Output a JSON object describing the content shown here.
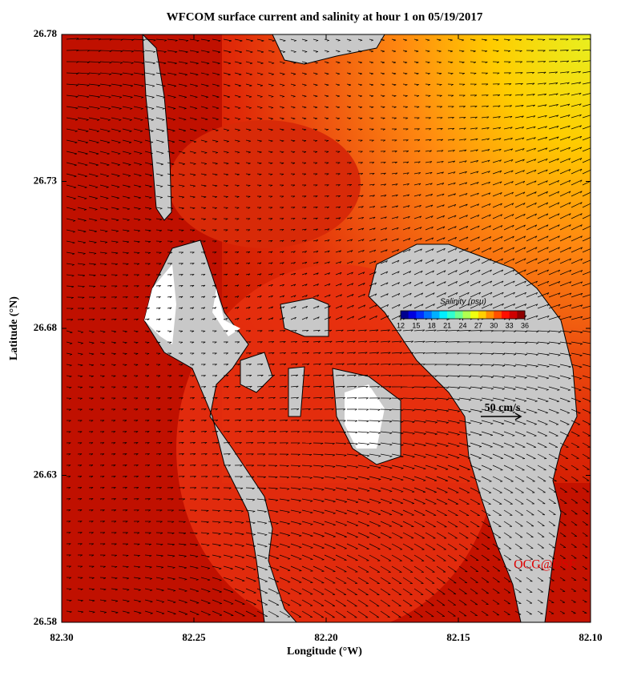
{
  "title": "WFCOM surface current and salinity at hour 1 on 05/19/2017",
  "x_axis": {
    "label": "Longitude (°W)",
    "lim": [
      82.3,
      82.1
    ],
    "ticks": [
      {
        "value": 82.3,
        "label": "82.30"
      },
      82.25,
      {
        "value": 82.2,
        "label": "82.20"
      },
      82.15,
      {
        "value": 82.1,
        "label": "82.10"
      }
    ]
  },
  "y_axis": {
    "label": "Latitude (°N)",
    "lim": [
      26.58,
      26.78
    ],
    "ticks": [
      26.58,
      26.63,
      26.68,
      26.73,
      26.78
    ]
  },
  "colorbar": {
    "title": "Salinity (psu)",
    "lim": [
      12,
      36
    ],
    "ticks": [
      12,
      15,
      18,
      21,
      24,
      27,
      30,
      33,
      36
    ],
    "colors": [
      "#00008f",
      "#0000df",
      "#0030ff",
      "#0070ff",
      "#00b0ff",
      "#00efff",
      "#30ffcf",
      "#70ff8f",
      "#b0ff50",
      "#efff10",
      "#ffcf00",
      "#ff9000",
      "#ff5000",
      "#ff1000",
      "#cf0000",
      "#8f0000"
    ]
  },
  "scale_label": "50 cm/s",
  "credit": "OCG@USF"
}
